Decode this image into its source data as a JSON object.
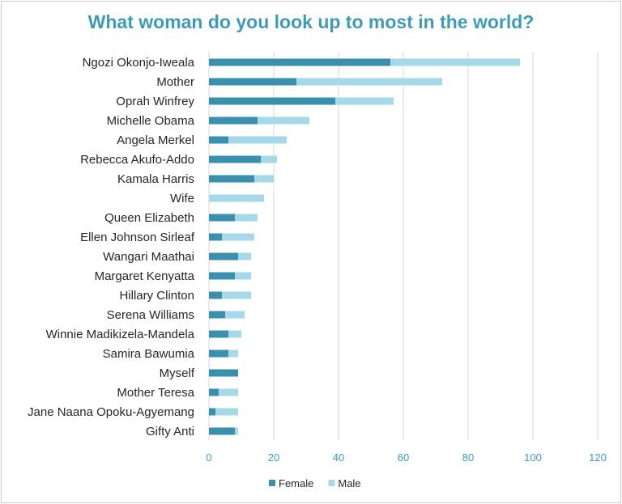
{
  "chart_data": {
    "type": "bar",
    "orientation": "horizontal",
    "stacked": true,
    "title": "What woman do you look up to most in the world?",
    "categories": [
      "Ngozi Okonjo-Iweala",
      "Mother",
      "Oprah Winfrey",
      "Michelle Obama",
      "Angela Merkel",
      "Rebecca Akufo-Addo",
      "Kamala Harris",
      "Wife",
      "Queen Elizabeth",
      "Ellen Johnson Sirleaf",
      "Wangari Maathai",
      "Margaret Kenyatta",
      "Hillary Clinton",
      "Serena Williams",
      "Winnie Madikizela-Mandela",
      "Samira Bawumia",
      "Myself",
      "Mother Teresa",
      "Jane Naana Opoku-Agyemang",
      "Gifty Anti"
    ],
    "series": [
      {
        "name": "Female",
        "color": "#3a8fae",
        "values": [
          56,
          27,
          39,
          15,
          6,
          16,
          14,
          0,
          8,
          4,
          9,
          8,
          4,
          5,
          6,
          6,
          9,
          3,
          2,
          8
        ]
      },
      {
        "name": "Male",
        "color": "#a5d9e8",
        "values": [
          40,
          45,
          18,
          16,
          18,
          5,
          6,
          17,
          7,
          10,
          4,
          5,
          9,
          6,
          4,
          3,
          0,
          6,
          7,
          1
        ]
      }
    ],
    "xlim": [
      0,
      120
    ],
    "xticks": [
      0,
      20,
      40,
      60,
      80,
      100,
      120
    ],
    "grid": true,
    "legend": "bottom"
  }
}
